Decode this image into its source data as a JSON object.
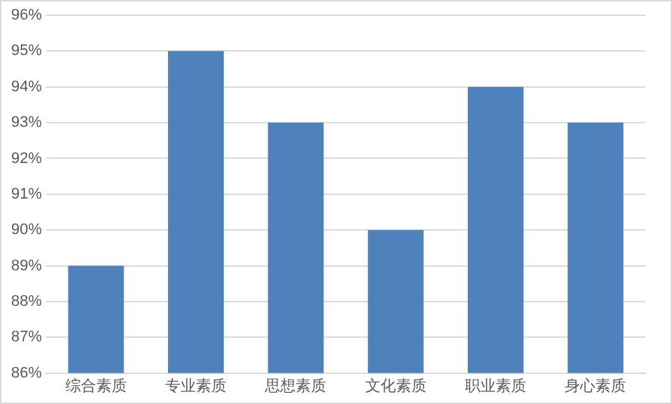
{
  "chart_data": {
    "type": "bar",
    "categories": [
      "综合素质",
      "专业素质",
      "思想素质",
      "文化素质",
      "职业素质",
      "身心素质"
    ],
    "values": [
      89,
      95,
      93,
      90,
      94,
      93
    ],
    "color": "#4f81bd",
    "ylim": [
      86,
      96
    ],
    "yticks": [
      {
        "value": 86,
        "label": "86%"
      },
      {
        "value": 87,
        "label": "87%"
      },
      {
        "value": 88,
        "label": "88%"
      },
      {
        "value": 89,
        "label": "89%"
      },
      {
        "value": 90,
        "label": "90%"
      },
      {
        "value": 91,
        "label": "91%"
      },
      {
        "value": 92,
        "label": "92%"
      },
      {
        "value": 93,
        "label": "93%"
      },
      {
        "value": 94,
        "label": "94%"
      },
      {
        "value": 95,
        "label": "95%"
      },
      {
        "value": 96,
        "label": "96%"
      }
    ],
    "grid": "y",
    "legend": false
  }
}
